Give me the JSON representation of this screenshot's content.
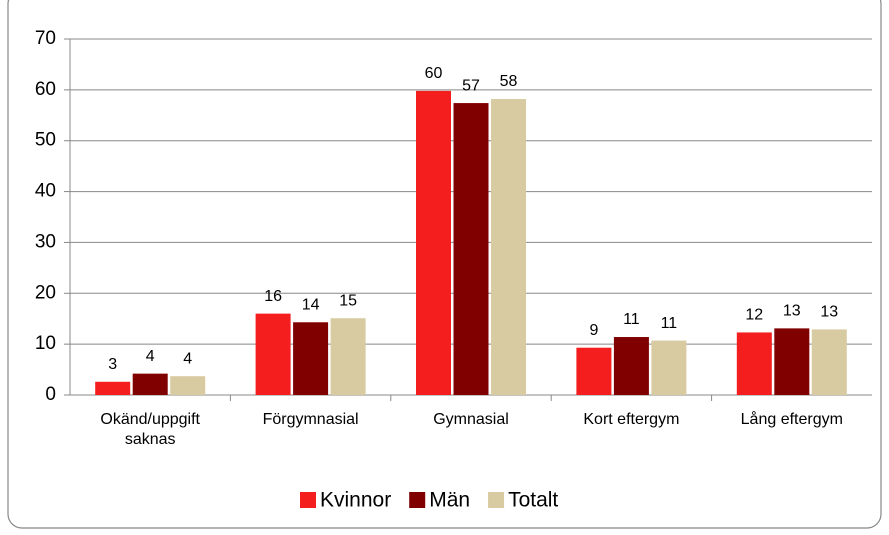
{
  "chart_data": {
    "type": "bar",
    "categories": [
      "Okänd/uppgift saknas",
      "Förgymnasial",
      "Gymnasial",
      "Kort eftergym",
      "Lång eftergym"
    ],
    "series": [
      {
        "name": "Kvinnor",
        "color": "#f41e1e",
        "values": [
          2.6,
          16,
          59.8,
          9.3,
          12.3
        ],
        "value_labels": [
          "3",
          "16",
          "60",
          "9",
          "12"
        ]
      },
      {
        "name": "Män",
        "color": "#800000",
        "values": [
          4.2,
          14.3,
          57.4,
          11.4,
          13.1
        ],
        "value_labels": [
          "4",
          "14",
          "57",
          "11",
          "13"
        ]
      },
      {
        "name": "Totalt",
        "color": "#d9cba1",
        "values": [
          3.7,
          15.1,
          58.2,
          10.7,
          12.9
        ],
        "value_labels": [
          "4",
          "15",
          "58",
          "11",
          "13"
        ]
      }
    ],
    "ylim": [
      0,
      70
    ],
    "yticks": [
      0,
      10,
      20,
      30,
      40,
      50,
      60,
      70
    ],
    "grid": true,
    "legend": "bottom"
  }
}
